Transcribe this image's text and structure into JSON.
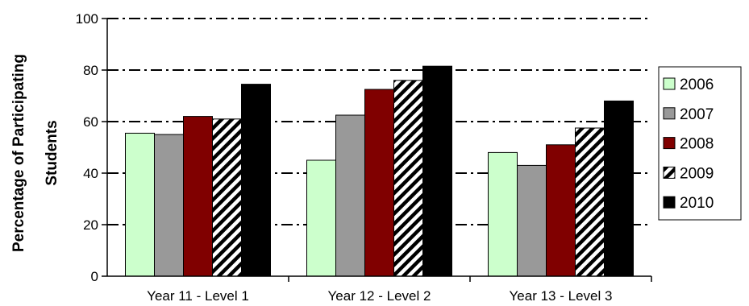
{
  "chart_data": {
    "type": "bar",
    "ylabel": [
      "Percentage of Participating",
      "Students"
    ],
    "xlabel": "",
    "ylim": [
      0,
      100
    ],
    "yticks": [
      "0",
      "20",
      "40",
      "60",
      "80",
      "100"
    ],
    "grid": "horizontal dash-dot",
    "legend_position": "right",
    "categories": [
      "Year 11 - Level 1",
      "Year 12 - Level 2",
      "Year 13 - Level 3"
    ],
    "series": [
      {
        "name": "2006",
        "values": [
          55.5,
          45,
          48
        ],
        "color": "#ccffcc",
        "pattern": "solid"
      },
      {
        "name": "2007",
        "values": [
          55,
          62.5,
          43
        ],
        "color": "#999999",
        "pattern": "solid"
      },
      {
        "name": "2008",
        "values": [
          62,
          72.5,
          51
        ],
        "color": "#800000",
        "pattern": "solid"
      },
      {
        "name": "2009",
        "values": [
          61,
          76,
          57.5
        ],
        "color": "#ffffff",
        "pattern": "diagonal-stripes"
      },
      {
        "name": "2010",
        "values": [
          74.5,
          81.5,
          68
        ],
        "color": "#000000",
        "pattern": "solid"
      }
    ]
  }
}
